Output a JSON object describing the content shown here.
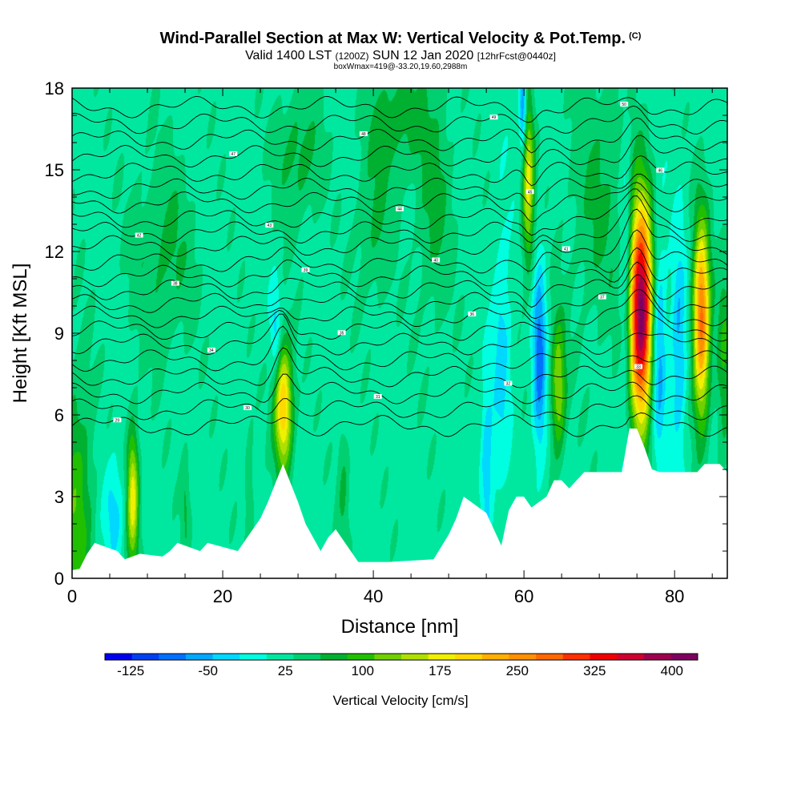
{
  "header": {
    "title": "Wind-Parallel Section at Max W: Vertical Velocity & Pot.Temp.",
    "title_tag": "(C)",
    "subtitle_a": "Valid 1400 LST",
    "subtitle_b": "(1200Z)",
    "subtitle_c": "SUN 12 Jan 2020",
    "subtitle_d": "[12hrFcst@0440z]",
    "subtitle2": "boxWmax=419@-33.20,19.60,2988m"
  },
  "chart_data": {
    "type": "heatmap",
    "xlabel": "Distance [nm]",
    "ylabel": "Height [Kft MSL]",
    "xlim": [
      0,
      87
    ],
    "ylim": [
      0,
      18
    ],
    "x_ticks": [
      0,
      20,
      40,
      60,
      80
    ],
    "y_ticks": [
      0,
      3,
      6,
      9,
      12,
      15,
      18
    ],
    "colorbar": {
      "title": "Vertical Velocity [cm/s]",
      "min": -150,
      "max": 425,
      "labels": [
        -125,
        -50,
        25,
        100,
        175,
        250,
        325,
        400
      ],
      "colors": [
        "#0000f0",
        "#0040f0",
        "#0070ff",
        "#00a8ff",
        "#00d8ff",
        "#00ffe0",
        "#00e8a0",
        "#00d070",
        "#00b030",
        "#20c000",
        "#70d000",
        "#b0e000",
        "#f0f000",
        "#ffd800",
        "#ffb000",
        "#ff9000",
        "#ff6800",
        "#ff3000",
        "#f00000",
        "#d00030",
        "#a00050",
        "#800060"
      ]
    },
    "terrain": [
      [
        0,
        0.3
      ],
      [
        1,
        0.35
      ],
      [
        2,
        0.9
      ],
      [
        3,
        1.3
      ],
      [
        6,
        1.0
      ],
      [
        7,
        0.7
      ],
      [
        9,
        0.9
      ],
      [
        12,
        0.8
      ],
      [
        13,
        1.0
      ],
      [
        14,
        1.3
      ],
      [
        17,
        1.0
      ],
      [
        18,
        1.3
      ],
      [
        22,
        1.0
      ],
      [
        24,
        1.8
      ],
      [
        25,
        2.2
      ],
      [
        26,
        2.8
      ],
      [
        27,
        3.5
      ],
      [
        28,
        4.2
      ],
      [
        29,
        3.5
      ],
      [
        30,
        2.8
      ],
      [
        31,
        2.0
      ],
      [
        32,
        1.5
      ],
      [
        33,
        1.0
      ],
      [
        34,
        1.5
      ],
      [
        35,
        1.8
      ],
      [
        36,
        1.4
      ],
      [
        38,
        0.6
      ],
      [
        42,
        0.6
      ],
      [
        48,
        0.7
      ],
      [
        50,
        1.6
      ],
      [
        51,
        2.2
      ],
      [
        52,
        3.0
      ],
      [
        53,
        2.8
      ],
      [
        54,
        2.6
      ],
      [
        55,
        2.4
      ],
      [
        56,
        1.8
      ],
      [
        57,
        1.2
      ],
      [
        58,
        2.5
      ],
      [
        59,
        3.0
      ],
      [
        60,
        3.0
      ],
      [
        61,
        2.6
      ],
      [
        62,
        2.8
      ],
      [
        63,
        3.0
      ],
      [
        64,
        3.6
      ],
      [
        65,
        3.6
      ],
      [
        66,
        3.3
      ],
      [
        67,
        3.6
      ],
      [
        68,
        3.9
      ],
      [
        73,
        3.9
      ],
      [
        74,
        5.5
      ],
      [
        75,
        5.5
      ],
      [
        76,
        4.8
      ],
      [
        77,
        4.0
      ],
      [
        78,
        3.9
      ],
      [
        83,
        3.9
      ],
      [
        84,
        4.2
      ],
      [
        86,
        4.2
      ],
      [
        87,
        3.9
      ]
    ],
    "w_features": [
      {
        "x": 0.5,
        "y": 2.5,
        "w": 80,
        "rx": 2.2,
        "ry": 5.0
      },
      {
        "x": 8,
        "y": 3.0,
        "w": 160,
        "rx": 0.8,
        "ry": 2.5
      },
      {
        "x": 5.5,
        "y": 2.5,
        "w": -55,
        "rx": 1.4,
        "ry": 2.0
      },
      {
        "x": 15,
        "y": 2.8,
        "w": 40,
        "rx": 0.6,
        "ry": 2.0
      },
      {
        "x": 23.5,
        "y": 3.0,
        "w": 40,
        "rx": 0.6,
        "ry": 2.5
      },
      {
        "x": 28,
        "y": 6.3,
        "w": 200,
        "rx": 1.2,
        "ry": 2.3
      },
      {
        "x": 27,
        "y": 9.0,
        "w": -60,
        "rx": 0.7,
        "ry": 1.8
      },
      {
        "x": 36,
        "y": 3.5,
        "w": 40,
        "rx": 0.8,
        "ry": 2.5
      },
      {
        "x": 12,
        "y": 12,
        "w": 45,
        "rx": 4.0,
        "ry": 3.5
      },
      {
        "x": 30,
        "y": 15.5,
        "w": 50,
        "rx": 3.0,
        "ry": 2.5
      },
      {
        "x": 43,
        "y": 17,
        "w": 55,
        "rx": 3.5,
        "ry": 2.0
      },
      {
        "x": 40,
        "y": 13,
        "w": 40,
        "rx": 2.5,
        "ry": 3.0
      },
      {
        "x": 48,
        "y": 14,
        "w": 45,
        "rx": 2.5,
        "ry": 4.5
      },
      {
        "x": 55,
        "y": 4.0,
        "w": -70,
        "rx": 0.8,
        "ry": 3.0
      },
      {
        "x": 57,
        "y": 8.5,
        "w": -55,
        "rx": 1.2,
        "ry": 4.5
      },
      {
        "x": 60.5,
        "y": 14.5,
        "w": 150,
        "rx": 0.8,
        "ry": 3.0
      },
      {
        "x": 59.8,
        "y": 17.2,
        "w": -120,
        "rx": 0.5,
        "ry": 1.6
      },
      {
        "x": 62,
        "y": 8.0,
        "w": -110,
        "rx": 0.9,
        "ry": 3.5
      },
      {
        "x": 64.5,
        "y": 7.0,
        "w": 120,
        "rx": 1.0,
        "ry": 2.5
      },
      {
        "x": 70,
        "y": 14,
        "w": 40,
        "rx": 4.0,
        "ry": 5.0
      },
      {
        "x": 75.5,
        "y": 9.8,
        "w": 400,
        "rx": 1.5,
        "ry": 3.9
      },
      {
        "x": 73.5,
        "y": 11.0,
        "w": -60,
        "rx": 0.8,
        "ry": 5.5
      },
      {
        "x": 77.8,
        "y": 8.5,
        "w": -95,
        "rx": 1.0,
        "ry": 4.0
      },
      {
        "x": 83.5,
        "y": 9.5,
        "w": 260,
        "rx": 1.1,
        "ry": 3.5
      },
      {
        "x": 80.5,
        "y": 8.5,
        "w": -75,
        "rx": 1.0,
        "ry": 4.0
      },
      {
        "x": 86.5,
        "y": 8.0,
        "w": 60,
        "rx": 1.0,
        "ry": 4.0
      }
    ],
    "theta_contours": [
      {
        "level": 29,
        "base": 5.6
      },
      {
        "level": 30,
        "base": 6.2
      },
      {
        "level": 31,
        "base": 6.8
      },
      {
        "level": 32,
        "base": 7.4
      },
      {
        "level": 33,
        "base": 8.0
      },
      {
        "level": 34,
        "base": 8.6
      },
      {
        "level": 35,
        "base": 9.1
      },
      {
        "level": 36,
        "base": 9.6
      },
      {
        "level": 37,
        "base": 10.1
      },
      {
        "level": 38,
        "base": 10.6
      },
      {
        "level": 39,
        "base": 11.1
      },
      {
        "level": 40,
        "base": 11.6
      },
      {
        "level": 41,
        "base": 12.2
      },
      {
        "level": 42,
        "base": 12.7
      },
      {
        "level": 43,
        "base": 13.2
      },
      {
        "level": 44,
        "base": 13.8
      },
      {
        "level": 45,
        "base": 14.3
      },
      {
        "level": 46,
        "base": 14.9
      },
      {
        "level": 47,
        "base": 15.5
      },
      {
        "level": 48,
        "base": 16.1
      },
      {
        "level": 49,
        "base": 16.7
      },
      {
        "level": 50,
        "base": 17.3
      }
    ]
  }
}
